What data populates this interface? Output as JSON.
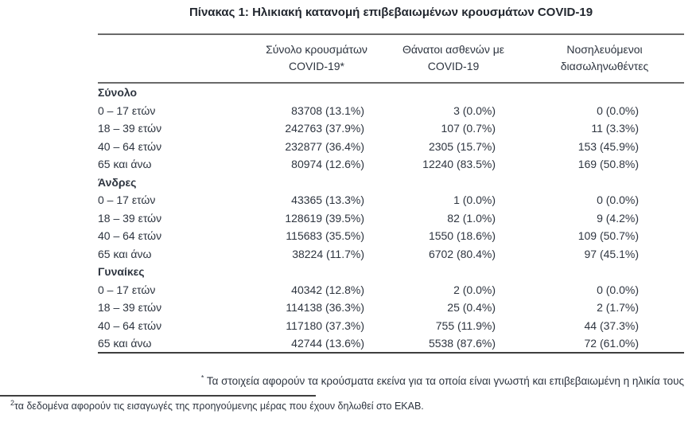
{
  "title": "Πίνακας 1: Ηλικιακή κατανομή επιβεβαιωμένων κρουσμάτων COVID-19",
  "colors": {
    "text": "#2e3540",
    "section_text": "#232830",
    "rule_gray": "#6a6a6a",
    "rule_dark": "#3f3f3f"
  },
  "table": {
    "columns": [
      {
        "line1": "Σύνολο κρουσμάτων",
        "line2": "COVID-19*"
      },
      {
        "line1": "Θάνατοι ασθενών με",
        "line2": "COVID-19"
      },
      {
        "line1": "Νοσηλευόμενοι",
        "line2": "διασωληνωθέντες"
      }
    ],
    "groups": [
      {
        "label": "Σύνολο",
        "rows": [
          {
            "label": "0 – 17 ετών",
            "cases": "83708 (13.1%)",
            "deaths": "3 (0.0%)",
            "intubated": "0 (0.0%)"
          },
          {
            "label": "18 – 39 ετών",
            "cases": "242763 (37.9%)",
            "deaths": "107 (0.7%)",
            "intubated": "11 (3.3%)"
          },
          {
            "label": "40 – 64 ετών",
            "cases": "232877 (36.4%)",
            "deaths": "2305 (15.7%)",
            "intubated": "153 (45.9%)"
          },
          {
            "label": "65 και άνω",
            "cases": "80974 (12.6%)",
            "deaths": "12240 (83.5%)",
            "intubated": "169 (50.8%)"
          }
        ]
      },
      {
        "label": "Άνδρες",
        "rows": [
          {
            "label": "0 – 17 ετών",
            "cases": "43365 (13.3%)",
            "deaths": "1 (0.0%)",
            "intubated": "0 (0.0%)"
          },
          {
            "label": "18 – 39 ετών",
            "cases": "128619 (39.5%)",
            "deaths": "82 (1.0%)",
            "intubated": "9 (4.2%)"
          },
          {
            "label": "40 – 64 ετών",
            "cases": "115683 (35.5%)",
            "deaths": "1550 (18.6%)",
            "intubated": "109 (50.7%)"
          },
          {
            "label": "65 και άνω",
            "cases": "38224 (11.7%)",
            "deaths": "6702 (80.4%)",
            "intubated": "97 (45.1%)"
          }
        ]
      },
      {
        "label": "Γυναίκες",
        "rows": [
          {
            "label": "0 – 17 ετών",
            "cases": "40342 (12.8%)",
            "deaths": "2 (0.0%)",
            "intubated": "0 (0.0%)"
          },
          {
            "label": "18 – 39 ετών",
            "cases": "114138 (36.3%)",
            "deaths": "25 (0.4%)",
            "intubated": "2 (1.7%)"
          },
          {
            "label": "40 – 64 ετών",
            "cases": "117180 (37.3%)",
            "deaths": "755 (11.9%)",
            "intubated": "44 (37.3%)"
          },
          {
            "label": "65 και άνω",
            "cases": "42744 (13.6%)",
            "deaths": "5538 (87.6%)",
            "intubated": "72 (61.0%)"
          }
        ]
      }
    ]
  },
  "footnotes": {
    "star_symbol": "*",
    "star_text": "Τα στοιχεία αφορούν τα κρούσματα εκείνα για τα οποία είναι γνωστή και επιβεβαιωμένη η ηλικία τους",
    "note2_symbol": "2",
    "note2_text": "τα δεδομένα αφορούν τις εισαγωγές της προηγούμενης μέρας που έχουν δηλωθεί στο ΕΚΑΒ."
  }
}
